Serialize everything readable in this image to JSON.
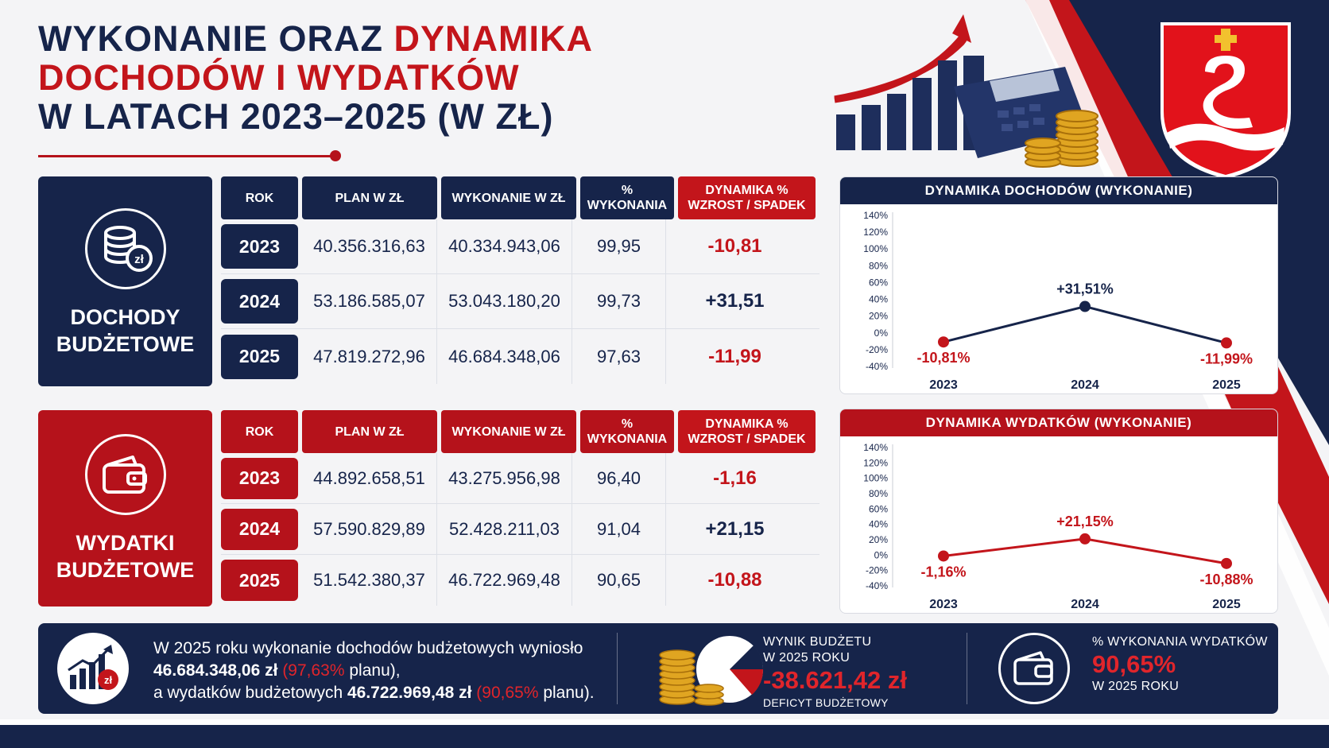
{
  "title": {
    "line1_a": "WYKONANIE ORAZ ",
    "line1_b": "DYNAMIKA",
    "line2": "DOCHODÓW I WYDATKÓW",
    "line3": "W LATACH 2023–2025 (W ZŁ)"
  },
  "colors": {
    "navy": "#16244a",
    "red": "#c3151b"
  },
  "icons": [
    "coins-zl-icon",
    "wallet-icon",
    "growth-chart-icon",
    "calculator-coins-icon",
    "pie-chart-icon",
    "coat-of-arms"
  ],
  "income": {
    "label_line1": "DOCHODY",
    "label_line2": "BUDŻETOWE",
    "headers": {
      "rok": "ROK",
      "plan": "PLAN W ZŁ",
      "wyk": "WYKONANIE W ZŁ",
      "pct_line1": "%",
      "pct_line2": "WYKONANIA",
      "dyn_line1": "DYNAMIKA %",
      "dyn_line2": "WZROST / SPADEK"
    },
    "rows": [
      {
        "year": "2023",
        "plan": "40.356.316,63",
        "wyk": "40.334.943,06",
        "pct": "99,95",
        "dyn": "-10,81"
      },
      {
        "year": "2024",
        "plan": "53.186.585,07",
        "wyk": "53.043.180,20",
        "pct": "99,73",
        "dyn": "+31,51"
      },
      {
        "year": "2025",
        "plan": "47.819.272,96",
        "wyk": "46.684.348,06",
        "pct": "97,63",
        "dyn": "-11,99"
      }
    ]
  },
  "expenses": {
    "label_line1": "WYDATKI",
    "label_line2": "BUDŻETOWE",
    "headers": {
      "rok": "ROK",
      "plan": "PLAN W ZŁ",
      "wyk": "WYKONANIE W ZŁ",
      "pct_line1": "%",
      "pct_line2": "WYKONANIA",
      "dyn_line1": "DYNAMIKA %",
      "dyn_line2": "WZROST / SPADEK"
    },
    "rows": [
      {
        "year": "2023",
        "plan": "44.892.658,51",
        "wyk": "43.275.956,98",
        "pct": "96,40",
        "dyn": "-1,16"
      },
      {
        "year": "2024",
        "plan": "57.590.829,89",
        "wyk": "52.428.211,03",
        "pct": "91,04",
        "dyn": "+21,15"
      },
      {
        "year": "2025",
        "plan": "51.542.380,37",
        "wyk": "46.722.969,48",
        "pct": "90,65",
        "dyn": "-10,88"
      }
    ]
  },
  "chart_data": [
    {
      "type": "line",
      "title": "DYNAMIKA DOCHODÓW (WYKONANIE)",
      "x": [
        "2023",
        "2024",
        "2025"
      ],
      "values": [
        -10.81,
        31.51,
        -11.99
      ],
      "point_labels": [
        "-10,81%",
        "+31,51%",
        "-11,99%"
      ],
      "point_colors": [
        "#c3151b",
        "#16244a",
        "#c3151b"
      ],
      "line_color": "#16244a",
      "ylim": [
        -40,
        140
      ],
      "yticks": [
        "140%",
        "120%",
        "100%",
        "80%",
        "60%",
        "40%",
        "20%",
        "0%",
        "-20%",
        "-40%"
      ],
      "ytick_values": [
        140,
        120,
        100,
        80,
        60,
        40,
        20,
        0,
        -20,
        -40
      ],
      "grid": false
    },
    {
      "type": "line",
      "title": "DYNAMIKA WYDATKÓW (WYKONANIE)",
      "x": [
        "2023",
        "2024",
        "2025"
      ],
      "values": [
        -1.16,
        21.15,
        -10.88
      ],
      "point_labels": [
        "-1,16%",
        "+21,15%",
        "-10,88%"
      ],
      "point_colors": [
        "#c3151b",
        "#c3151b",
        "#c3151b"
      ],
      "line_color": "#c3151b",
      "ylim": [
        -40,
        140
      ],
      "yticks": [
        "140%",
        "120%",
        "100%",
        "80%",
        "60%",
        "40%",
        "20%",
        "0%",
        "-20%",
        "-40%"
      ],
      "ytick_values": [
        140,
        120,
        100,
        80,
        60,
        40,
        20,
        0,
        -20,
        -40
      ],
      "grid": false
    }
  ],
  "summary": {
    "line1": "W 2025 roku wykonanie dochodów budżetowych wyniosło",
    "income_value": "46.684.348,06 zł",
    "income_pct": "(97,63%",
    "income_pct_suffix": " planu),",
    "line3_prefix": "a wydatków budżetowych ",
    "expense_value": "46.722.969,48 zł",
    "expense_pct": "(90,65%",
    "expense_pct_suffix": " planu).",
    "result_label_line1": "WYNIK BUDŻETU",
    "result_label_line2": "W 2025 ROKU",
    "result_value": "-38.621,42 zł",
    "result_note": "DEFICYT BUDŻETOWY",
    "exp_pct_label": "% WYKONANIA WYDATKÓW",
    "exp_pct_value": "90,65%",
    "exp_pct_note": "W 2025 ROKU"
  }
}
